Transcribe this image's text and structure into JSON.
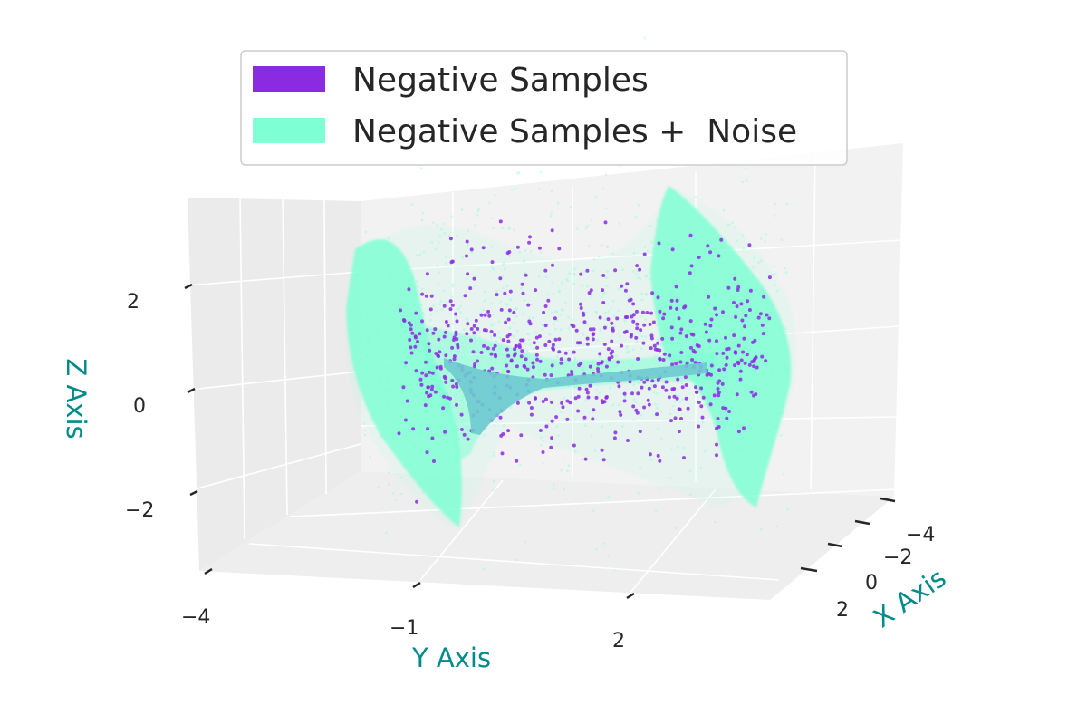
{
  "chart_data": {
    "type": "scatter",
    "title": "",
    "xlabel": "X Axis",
    "ylabel": "Y Axis",
    "zlabel": "Z Axis",
    "axis_label_color": "#008b8b",
    "grid": true,
    "legend_position": "top-center",
    "x_ticks": [
      "−4",
      "−2",
      "0",
      "2"
    ],
    "y_ticks": [
      "−4",
      "−1",
      "2"
    ],
    "z_ticks": [
      "−2",
      "0",
      "2"
    ],
    "xlim": [
      -5,
      3
    ],
    "ylim": [
      -4,
      3
    ],
    "zlim": [
      -3,
      3
    ],
    "series": [
      {
        "name": "Negative Samples",
        "color": "#8a2be2",
        "shape": "saddle-shaped 3D point cloud, core points along a narrow ridge"
      },
      {
        "name": "Negative Samples +  Noise",
        "color": "#7fffd4",
        "shape": "the same saddle cloud spread by added noise into a wide translucent band"
      }
    ]
  }
}
